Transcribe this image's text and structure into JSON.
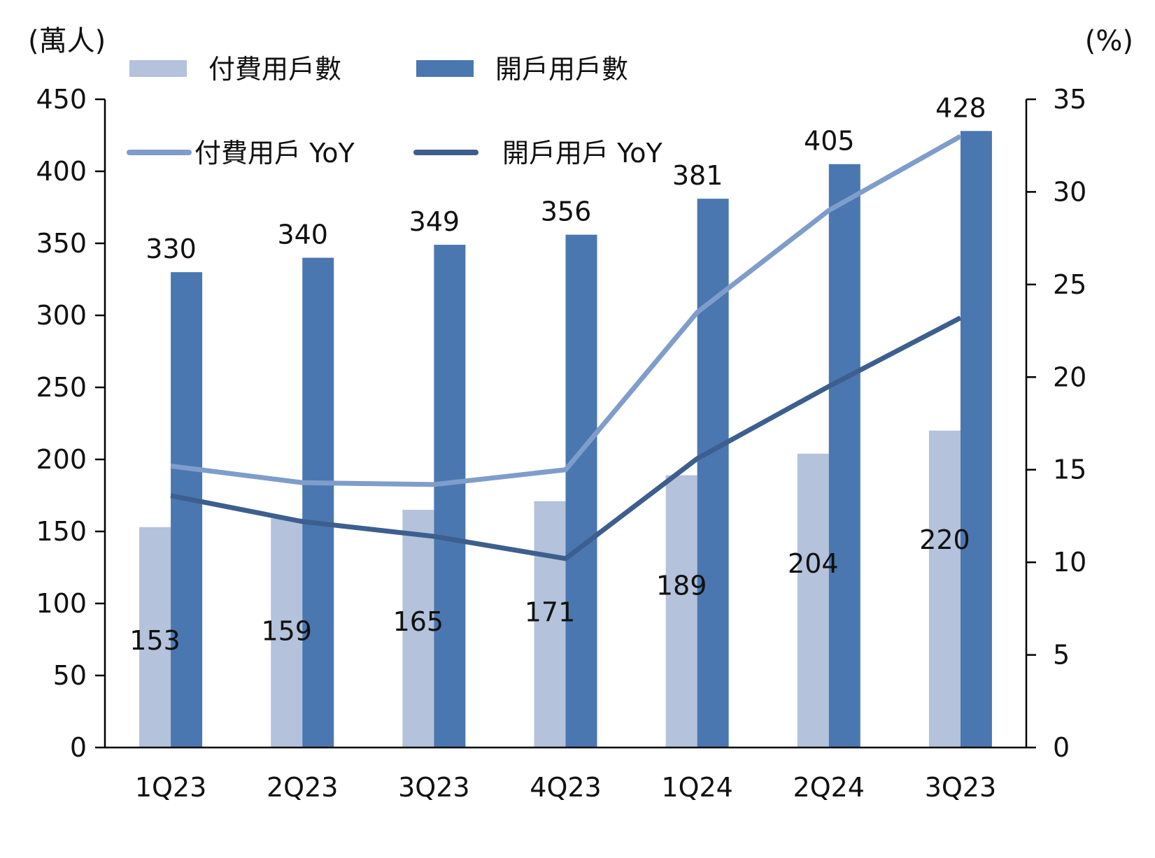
{
  "chart_data": {
    "type": "bar",
    "categories": [
      "1Q23",
      "2Q23",
      "3Q23",
      "4Q23",
      "1Q24",
      "2Q24",
      "3Q23"
    ],
    "y_left_label": "(萬人)",
    "y_right_label": "(%)",
    "y_left_ticks": [
      "0",
      "50",
      "100",
      "150",
      "200",
      "250",
      "300",
      "350",
      "400",
      "450"
    ],
    "y_right_ticks": [
      "0",
      "5",
      "10",
      "15",
      "20",
      "25",
      "30",
      "35"
    ],
    "ylim_left": [
      0,
      450
    ],
    "ylim_right": [
      0,
      35
    ],
    "grid": false,
    "legend_position": "top",
    "series": [
      {
        "name": "付費用戶數",
        "kind": "bar",
        "axis": "left",
        "color": "#b4c2dc",
        "values": [
          153,
          159,
          165,
          171,
          189,
          204,
          220
        ],
        "labels": [
          "153",
          "159",
          "165",
          "171",
          "189",
          "204",
          "220"
        ]
      },
      {
        "name": "開戶用戶數",
        "kind": "bar",
        "axis": "left",
        "color": "#4a77b0",
        "values": [
          330,
          340,
          349,
          356,
          381,
          405,
          428
        ],
        "labels": [
          "330",
          "340",
          "349",
          "356",
          "381",
          "405",
          "428"
        ]
      },
      {
        "name": "付費用戶 YoY",
        "kind": "line",
        "axis": "right",
        "color": "#7f9dcb",
        "values": [
          15.2,
          14.3,
          14.2,
          15.0,
          23.5,
          29.0,
          33.0
        ]
      },
      {
        "name": "開戶用戶 YoY",
        "kind": "line",
        "axis": "right",
        "color": "#3d5f8f",
        "values": [
          13.6,
          12.2,
          11.4,
          10.2,
          15.6,
          19.5,
          23.2
        ]
      }
    ]
  }
}
